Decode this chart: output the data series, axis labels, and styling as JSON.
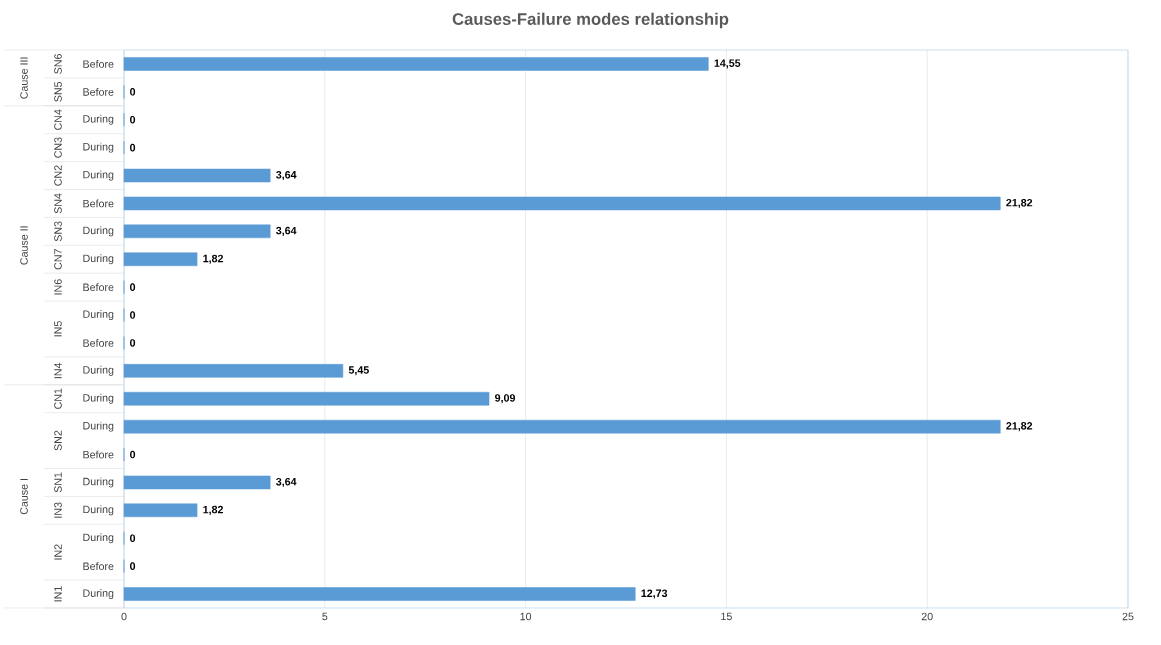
{
  "chart_data": {
    "type": "bar",
    "orientation": "horizontal",
    "title": "Causes-Failure  modes relationship",
    "categories": [
      "Before",
      "Before",
      "During",
      "During",
      "During",
      "Before",
      "During",
      "During",
      "Before",
      "During",
      "Before",
      "During",
      "During",
      "During",
      "Before",
      "During",
      "During",
      "During",
      "Before",
      "During"
    ],
    "values": [
      14.55,
      0,
      0,
      0,
      3.64,
      21.82,
      3.64,
      1.82,
      0,
      0,
      0,
      5.45,
      9.09,
      21.82,
      0,
      3.64,
      1.82,
      0,
      0,
      12.73
    ],
    "value_labels": [
      "14,55",
      "0",
      "0",
      "0",
      "3,64",
      "21,82",
      "3,64",
      "1,82",
      "0",
      "0",
      "0",
      "5,45",
      "9,09",
      "21,82",
      "0",
      "3,64",
      "1,82",
      "0",
      "0",
      "12,73"
    ],
    "color": "#5b9bd5",
    "xlim": [
      0,
      25
    ],
    "xticks": [
      0,
      5,
      10,
      15,
      20,
      25
    ],
    "grid": "x",
    "annotations": [
      "SN6",
      "SN5",
      "CN4",
      "CN3",
      "CN2",
      "SN4",
      "SN3",
      "CN7",
      "IN6",
      "IN5",
      "IN4",
      "CN1",
      "SN2",
      "SN1",
      "IN3",
      "IN2",
      "IN1",
      "Cause III",
      "Cause II",
      "Cause I"
    ]
  }
}
